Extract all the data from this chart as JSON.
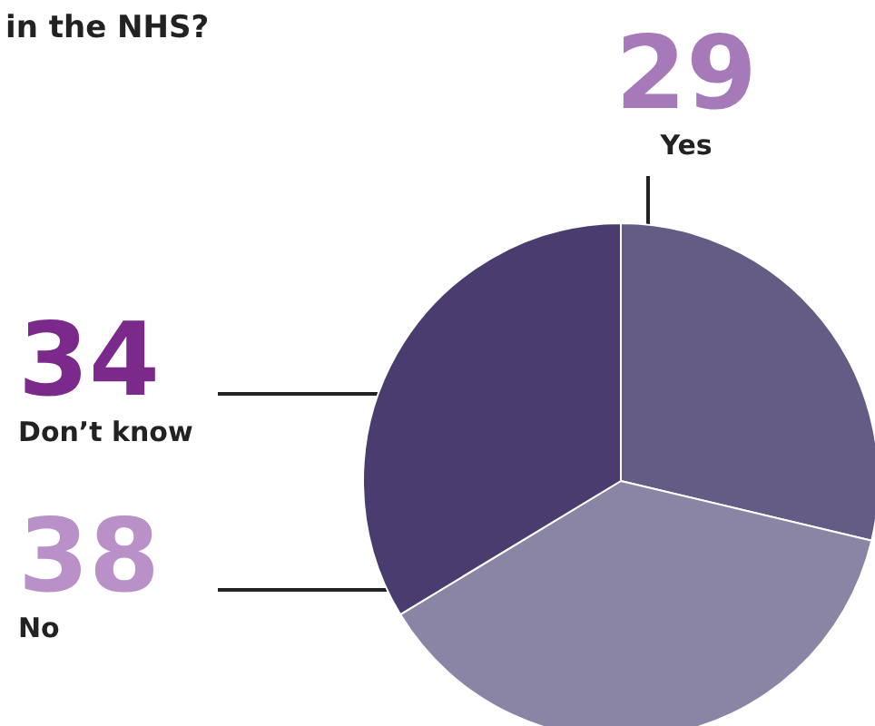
{
  "chart_data": {
    "type": "pie",
    "title": "in the NHS?",
    "categories": [
      "Yes",
      "No",
      "Don’t know"
    ],
    "values": [
      29,
      38,
      34
    ],
    "colors": [
      "#655c85",
      "#8a84a5",
      "#4a3c6e"
    ],
    "data_labels": true,
    "legend": false
  }
}
